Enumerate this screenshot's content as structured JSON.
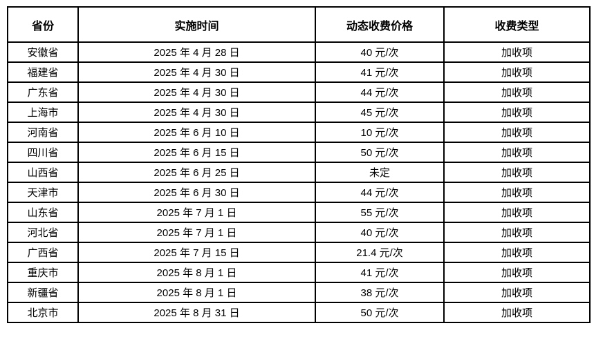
{
  "chart_data": {
    "type": "table",
    "title": "",
    "columns": [
      "省份",
      "实施时间",
      "动态收费价格",
      "收费类型"
    ],
    "rows": [
      [
        "安徽省",
        "2025 年 4 月 28 日",
        "40 元/次",
        "加收项"
      ],
      [
        "福建省",
        "2025 年 4 月 30 日",
        "41 元/次",
        "加收项"
      ],
      [
        "广东省",
        "2025 年 4 月 30 日",
        "44 元/次",
        "加收项"
      ],
      [
        "上海市",
        "2025 年 4 月 30 日",
        "45 元/次",
        "加收项"
      ],
      [
        "河南省",
        "2025 年 6 月 10 日",
        "10 元/次",
        "加收项"
      ],
      [
        "四川省",
        "2025 年 6 月 15 日",
        "50 元/次",
        "加收项"
      ],
      [
        "山西省",
        "2025 年 6 月 25 日",
        "未定",
        "加收项"
      ],
      [
        "天津市",
        "2025 年 6 月 30 日",
        "44 元/次",
        "加收项"
      ],
      [
        "山东省",
        "2025 年 7 月 1 日",
        "55 元/次",
        "加收项"
      ],
      [
        "河北省",
        "2025 年 7 月 1 日",
        "40 元/次",
        "加收项"
      ],
      [
        "广西省",
        "2025 年 7 月 15 日",
        "21.4 元/次",
        "加收项"
      ],
      [
        "重庆市",
        "2025 年 8 月 1 日",
        "41 元/次",
        "加收项"
      ],
      [
        "新疆省",
        "2025 年 8 月 1 日",
        "38 元/次",
        "加收项"
      ],
      [
        "北京市",
        "2025 年 8 月 31 日",
        "50 元/次",
        "加收项"
      ]
    ],
    "layout": {
      "grid": true,
      "border_color": "#000000",
      "background_color": "#ffffff",
      "text_color": "#000000",
      "header_bold": true
    }
  }
}
